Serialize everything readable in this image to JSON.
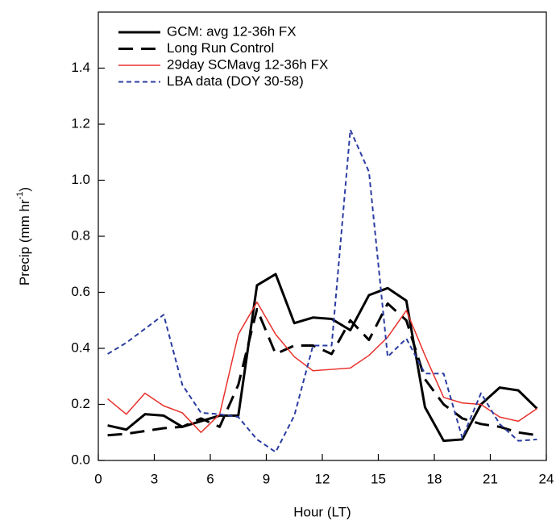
{
  "chart_data": {
    "type": "line",
    "x_label": "Hour (LT)",
    "y_label": {
      "text": "Precip (mm hr",
      "superscript": "-1",
      "suffix": ")"
    },
    "x": [
      0.5,
      1.5,
      2.5,
      3.5,
      4.5,
      5.5,
      6.5,
      7.5,
      8.5,
      9.5,
      10.5,
      11.5,
      12.5,
      13.5,
      14.5,
      15.5,
      16.5,
      17.5,
      18.5,
      19.5,
      20.5,
      21.5,
      22.5,
      23.5
    ],
    "series": [
      {
        "name": "GCM: avg 12-36h FX",
        "color": "#000000",
        "dash": "solid",
        "width": 3,
        "values": [
          0.125,
          0.11,
          0.165,
          0.16,
          0.12,
          0.14,
          0.16,
          0.16,
          0.625,
          0.665,
          0.49,
          0.51,
          0.505,
          0.465,
          0.59,
          0.615,
          0.57,
          0.19,
          0.07,
          0.075,
          0.2,
          0.26,
          0.25,
          0.185
        ]
      },
      {
        "name": "Long Run Control",
        "color": "#000000",
        "dash": "long-dash",
        "width": 3,
        "values": [
          0.09,
          0.095,
          0.105,
          0.115,
          0.12,
          0.15,
          0.12,
          0.27,
          0.54,
          0.38,
          0.41,
          0.41,
          0.38,
          0.5,
          0.43,
          0.56,
          0.5,
          0.29,
          0.2,
          0.15,
          0.13,
          0.12,
          0.1,
          0.09
        ]
      },
      {
        "name": "29day SCMavg 12-36h FX",
        "color": "#e8302a",
        "dash": "solid",
        "width": 1.5,
        "values": [
          0.22,
          0.165,
          0.24,
          0.195,
          0.17,
          0.1,
          0.165,
          0.45,
          0.565,
          0.45,
          0.37,
          0.32,
          0.325,
          0.33,
          0.375,
          0.44,
          0.535,
          0.375,
          0.225,
          0.205,
          0.2,
          0.155,
          0.14,
          0.185
        ]
      },
      {
        "name": "LBA data (DOY 30-58)",
        "color": "#2a3ca0",
        "dash": "short-dash",
        "width": 2,
        "values": [
          0.38,
          0.42,
          0.47,
          0.52,
          0.27,
          0.17,
          0.165,
          0.155,
          0.075,
          0.03,
          0.16,
          0.41,
          0.41,
          1.18,
          1.03,
          0.37,
          0.435,
          0.31,
          0.31,
          0.08,
          0.24,
          0.13,
          0.07,
          0.075
        ]
      }
    ],
    "xlim": [
      0,
      24
    ],
    "xticks": [
      0,
      3,
      6,
      9,
      12,
      15,
      18,
      21,
      24
    ],
    "ylim": [
      0,
      1.6
    ],
    "yticks": [
      {
        "value": 0,
        "label": "0.0"
      },
      0.2,
      0.4,
      0.6,
      0.8,
      {
        "value": 1,
        "label": "1.0"
      },
      1.2,
      1.4
    ],
    "legend": "upper-left"
  }
}
